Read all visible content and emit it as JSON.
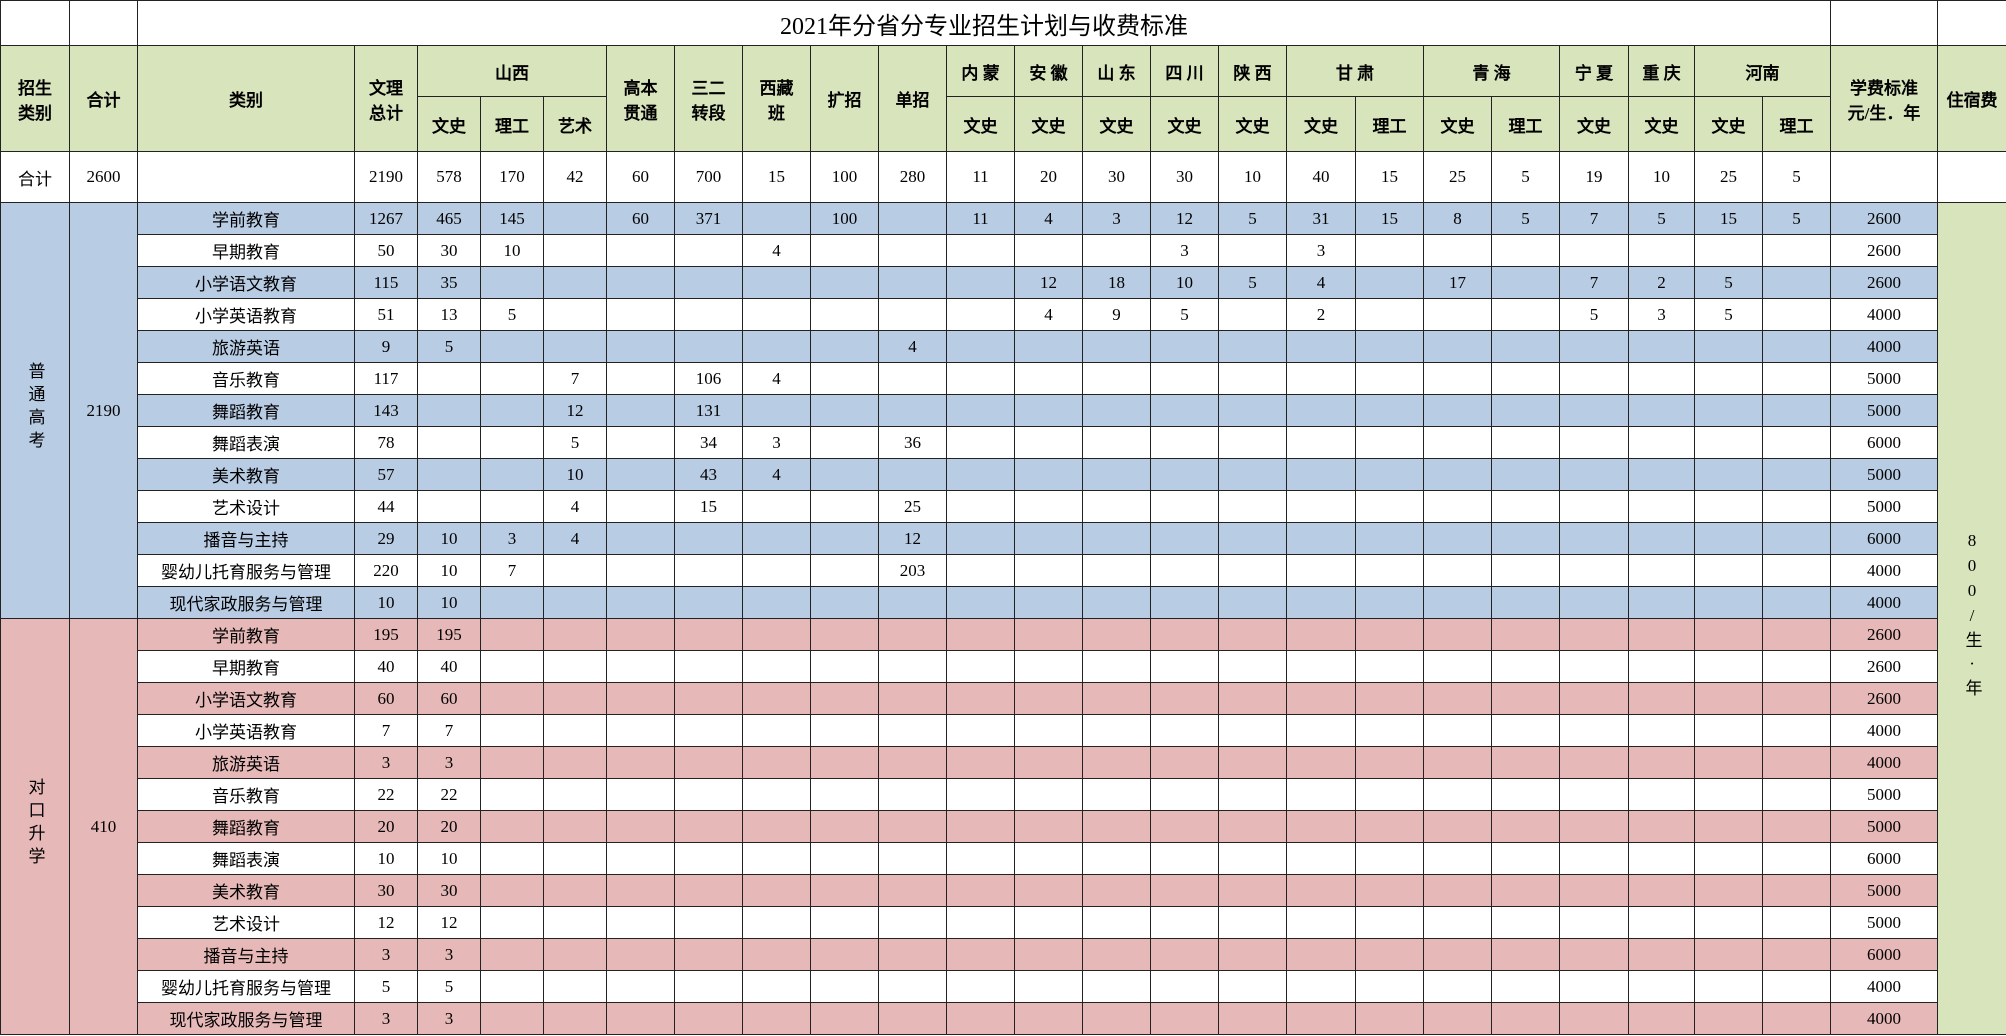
{
  "title": "2021年分省分专业招生计划与收费标准",
  "header": {
    "row1": [
      "招生\n类别",
      "合计",
      "类别",
      "文理\n总计",
      "山西",
      "高本\n贯通",
      "三二\n转段",
      "西藏\n班",
      "扩招",
      "单招",
      "内 蒙",
      "安 徽",
      "山 东",
      "四 川",
      "陕 西",
      "甘 肃",
      "青 海",
      "宁 夏",
      "重 庆",
      "河南",
      "学费标准\n元/生．年",
      "住宿费"
    ],
    "row2": [
      "文史",
      "理工",
      "艺术",
      "文史",
      "文史",
      "文史",
      "文史",
      "文史",
      "文史",
      "理工",
      "文史",
      "理工",
      "文史",
      "文史",
      "文史",
      "理工"
    ]
  },
  "total_row": {
    "label": "合计",
    "total": 2600,
    "values": [
      2190,
      578,
      170,
      42,
      60,
      700,
      15,
      100,
      280,
      11,
      20,
      30,
      30,
      10,
      40,
      15,
      25,
      5,
      19,
      10,
      25,
      5,
      null
    ]
  },
  "accommodation": "800/生·年",
  "groups": [
    {
      "label": "普通高考",
      "total": 2190,
      "rows": [
        {
          "category": "学前教育",
          "values": [
            1267,
            465,
            145,
            null,
            60,
            371,
            null,
            100,
            null,
            11,
            4,
            3,
            12,
            5,
            31,
            15,
            8,
            5,
            7,
            5,
            15,
            5,
            2600
          ]
        },
        {
          "category": "早期教育",
          "values": [
            50,
            30,
            10,
            null,
            null,
            null,
            4,
            null,
            null,
            null,
            null,
            null,
            3,
            null,
            3,
            null,
            null,
            null,
            null,
            null,
            null,
            null,
            2600
          ]
        },
        {
          "category": "小学语文教育",
          "values": [
            115,
            35,
            null,
            null,
            null,
            null,
            null,
            null,
            null,
            null,
            12,
            18,
            10,
            5,
            4,
            null,
            17,
            null,
            7,
            2,
            5,
            null,
            2600
          ]
        },
        {
          "category": "小学英语教育",
          "values": [
            51,
            13,
            5,
            null,
            null,
            null,
            null,
            null,
            null,
            null,
            4,
            9,
            5,
            null,
            2,
            null,
            null,
            null,
            5,
            3,
            5,
            null,
            4000
          ]
        },
        {
          "category": "旅游英语",
          "values": [
            9,
            5,
            null,
            null,
            null,
            null,
            null,
            null,
            4,
            null,
            null,
            null,
            null,
            null,
            null,
            null,
            null,
            null,
            null,
            null,
            null,
            null,
            4000
          ]
        },
        {
          "category": "音乐教育",
          "values": [
            117,
            null,
            null,
            7,
            null,
            106,
            4,
            null,
            null,
            null,
            null,
            null,
            null,
            null,
            null,
            null,
            null,
            null,
            null,
            null,
            null,
            null,
            5000
          ]
        },
        {
          "category": "舞蹈教育",
          "values": [
            143,
            null,
            null,
            12,
            null,
            131,
            null,
            null,
            null,
            null,
            null,
            null,
            null,
            null,
            null,
            null,
            null,
            null,
            null,
            null,
            null,
            null,
            5000
          ]
        },
        {
          "category": "舞蹈表演",
          "values": [
            78,
            null,
            null,
            5,
            null,
            34,
            3,
            null,
            36,
            null,
            null,
            null,
            null,
            null,
            null,
            null,
            null,
            null,
            null,
            null,
            null,
            null,
            6000
          ]
        },
        {
          "category": "美术教育",
          "values": [
            57,
            null,
            null,
            10,
            null,
            43,
            4,
            null,
            null,
            null,
            null,
            null,
            null,
            null,
            null,
            null,
            null,
            null,
            null,
            null,
            null,
            null,
            5000
          ]
        },
        {
          "category": "艺术设计",
          "values": [
            44,
            null,
            null,
            4,
            null,
            15,
            null,
            null,
            25,
            null,
            null,
            null,
            null,
            null,
            null,
            null,
            null,
            null,
            null,
            null,
            null,
            null,
            5000
          ]
        },
        {
          "category": "播音与主持",
          "values": [
            29,
            10,
            3,
            4,
            null,
            null,
            null,
            null,
            12,
            null,
            null,
            null,
            null,
            null,
            null,
            null,
            null,
            null,
            null,
            null,
            null,
            null,
            6000
          ]
        },
        {
          "category": "婴幼儿托育服务与管理",
          "values": [
            220,
            10,
            7,
            null,
            null,
            null,
            null,
            null,
            203,
            null,
            null,
            null,
            null,
            null,
            null,
            null,
            null,
            null,
            null,
            null,
            null,
            null,
            4000
          ]
        },
        {
          "category": "现代家政服务与管理",
          "values": [
            10,
            10,
            null,
            null,
            null,
            null,
            null,
            null,
            null,
            null,
            null,
            null,
            null,
            null,
            null,
            null,
            null,
            null,
            null,
            null,
            null,
            null,
            4000
          ]
        }
      ]
    },
    {
      "label": "对口升学",
      "total": 410,
      "rows": [
        {
          "category": "学前教育",
          "values": [
            195,
            195,
            null,
            null,
            null,
            null,
            null,
            null,
            null,
            null,
            null,
            null,
            null,
            null,
            null,
            null,
            null,
            null,
            null,
            null,
            null,
            null,
            2600
          ]
        },
        {
          "category": "早期教育",
          "values": [
            40,
            40,
            null,
            null,
            null,
            null,
            null,
            null,
            null,
            null,
            null,
            null,
            null,
            null,
            null,
            null,
            null,
            null,
            null,
            null,
            null,
            null,
            2600
          ]
        },
        {
          "category": "小学语文教育",
          "values": [
            60,
            60,
            null,
            null,
            null,
            null,
            null,
            null,
            null,
            null,
            null,
            null,
            null,
            null,
            null,
            null,
            null,
            null,
            null,
            null,
            null,
            null,
            2600
          ]
        },
        {
          "category": "小学英语教育",
          "values": [
            7,
            7,
            null,
            null,
            null,
            null,
            null,
            null,
            null,
            null,
            null,
            null,
            null,
            null,
            null,
            null,
            null,
            null,
            null,
            null,
            null,
            null,
            4000
          ]
        },
        {
          "category": "旅游英语",
          "values": [
            3,
            3,
            null,
            null,
            null,
            null,
            null,
            null,
            null,
            null,
            null,
            null,
            null,
            null,
            null,
            null,
            null,
            null,
            null,
            null,
            null,
            null,
            4000
          ]
        },
        {
          "category": "音乐教育",
          "values": [
            22,
            22,
            null,
            null,
            null,
            null,
            null,
            null,
            null,
            null,
            null,
            null,
            null,
            null,
            null,
            null,
            null,
            null,
            null,
            null,
            null,
            null,
            5000
          ]
        },
        {
          "category": "舞蹈教育",
          "values": [
            20,
            20,
            null,
            null,
            null,
            null,
            null,
            null,
            null,
            null,
            null,
            null,
            null,
            null,
            null,
            null,
            null,
            null,
            null,
            null,
            null,
            null,
            5000
          ]
        },
        {
          "category": "舞蹈表演",
          "values": [
            10,
            10,
            null,
            null,
            null,
            null,
            null,
            null,
            null,
            null,
            null,
            null,
            null,
            null,
            null,
            null,
            null,
            null,
            null,
            null,
            null,
            null,
            6000
          ]
        },
        {
          "category": "美术教育",
          "values": [
            30,
            30,
            null,
            null,
            null,
            null,
            null,
            null,
            null,
            null,
            null,
            null,
            null,
            null,
            null,
            null,
            null,
            null,
            null,
            null,
            null,
            null,
            5000
          ]
        },
        {
          "category": "艺术设计",
          "values": [
            12,
            12,
            null,
            null,
            null,
            null,
            null,
            null,
            null,
            null,
            null,
            null,
            null,
            null,
            null,
            null,
            null,
            null,
            null,
            null,
            null,
            null,
            5000
          ]
        },
        {
          "category": "播音与主持",
          "values": [
            3,
            3,
            null,
            null,
            null,
            null,
            null,
            null,
            null,
            null,
            null,
            null,
            null,
            null,
            null,
            null,
            null,
            null,
            null,
            null,
            null,
            null,
            6000
          ]
        },
        {
          "category": "婴幼儿托育服务与管理",
          "values": [
            5,
            5,
            null,
            null,
            null,
            null,
            null,
            null,
            null,
            null,
            null,
            null,
            null,
            null,
            null,
            null,
            null,
            null,
            null,
            null,
            null,
            null,
            4000
          ]
        },
        {
          "category": "现代家政服务与管理",
          "values": [
            3,
            3,
            null,
            null,
            null,
            null,
            null,
            null,
            null,
            null,
            null,
            null,
            null,
            null,
            null,
            null,
            null,
            null,
            null,
            null,
            null,
            null,
            4000
          ]
        }
      ]
    }
  ]
}
